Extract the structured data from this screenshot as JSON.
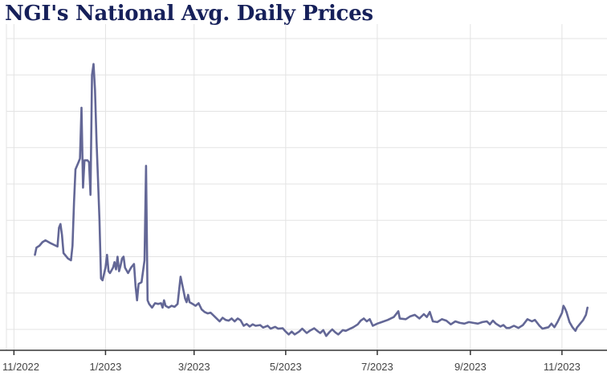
{
  "title": "NGI's National Avg. Daily Prices",
  "colors": {
    "line": "#636796",
    "grid": "#e3e3e3",
    "axis": "#333333",
    "title": "#16205a"
  },
  "chart_data": {
    "type": "line",
    "title": "NGI's National Avg. Daily Prices",
    "xlabel": "",
    "ylabel": "",
    "grid": true,
    "legend": "none",
    "x_tick_labels": [
      "11/2022",
      "1/2023",
      "3/2023",
      "5/2023",
      "7/2023",
      "9/2023",
      "11/2023"
    ],
    "y_tick_labels": [],
    "x_tick_dates": [
      "2022-11-01",
      "2023-01-01",
      "2023-03-01",
      "2023-05-01",
      "2023-07-01",
      "2023-09-01",
      "2023-11-01"
    ],
    "xlim": [
      "2022-10-27",
      "2023-12-01"
    ],
    "ylim": [
      0,
      8
    ],
    "series": [
      {
        "values": [
          [
            "2022-11-15",
            2.05
          ],
          [
            "2022-11-16",
            2.25
          ],
          [
            "2022-11-18",
            2.3
          ],
          [
            "2022-11-20",
            2.4
          ],
          [
            "2022-11-22",
            2.45
          ],
          [
            "2022-11-25",
            2.38
          ],
          [
            "2022-11-28",
            2.32
          ],
          [
            "2022-11-30",
            2.28
          ],
          [
            "2022-12-01",
            2.8
          ],
          [
            "2022-12-02",
            2.9
          ],
          [
            "2022-12-03",
            2.6
          ],
          [
            "2022-12-04",
            2.1
          ],
          [
            "2022-12-07",
            1.95
          ],
          [
            "2022-12-09",
            1.9
          ],
          [
            "2022-12-10",
            2.3
          ],
          [
            "2022-12-11",
            3.5
          ],
          [
            "2022-12-12",
            4.4
          ],
          [
            "2022-12-14",
            4.6
          ],
          [
            "2022-12-15",
            4.7
          ],
          [
            "2022-12-16",
            6.1
          ],
          [
            "2022-12-17",
            3.9
          ],
          [
            "2022-12-18",
            4.65
          ],
          [
            "2022-12-20",
            4.65
          ],
          [
            "2022-12-21",
            4.6
          ],
          [
            "2022-12-22",
            3.7
          ],
          [
            "2022-12-23",
            7.0
          ],
          [
            "2022-12-24",
            7.3
          ],
          [
            "2022-12-25",
            6.6
          ],
          [
            "2022-12-26",
            5.2
          ],
          [
            "2022-12-27",
            4.1
          ],
          [
            "2022-12-28",
            3.0
          ],
          [
            "2022-12-29",
            1.4
          ],
          [
            "2022-12-30",
            1.35
          ],
          [
            "2023-01-01",
            1.7
          ],
          [
            "2023-01-02",
            2.05
          ],
          [
            "2023-01-03",
            1.6
          ],
          [
            "2023-01-04",
            1.55
          ],
          [
            "2023-01-06",
            1.7
          ],
          [
            "2023-01-07",
            1.85
          ],
          [
            "2023-01-08",
            1.65
          ],
          [
            "2023-01-09",
            2.0
          ],
          [
            "2023-01-10",
            1.6
          ],
          [
            "2023-01-11",
            1.75
          ],
          [
            "2023-01-12",
            1.95
          ],
          [
            "2023-01-13",
            2.0
          ],
          [
            "2023-01-14",
            1.7
          ],
          [
            "2023-01-16",
            1.55
          ],
          [
            "2023-01-18",
            1.7
          ],
          [
            "2023-01-20",
            1.8
          ],
          [
            "2023-01-21",
            1.2
          ],
          [
            "2023-01-22",
            0.8
          ],
          [
            "2023-01-23",
            1.25
          ],
          [
            "2023-01-25",
            1.3
          ],
          [
            "2023-01-27",
            1.9
          ],
          [
            "2023-01-28",
            4.5
          ],
          [
            "2023-01-29",
            0.8
          ],
          [
            "2023-01-30",
            0.7
          ],
          [
            "2023-02-01",
            0.6
          ],
          [
            "2023-02-03",
            0.72
          ],
          [
            "2023-02-05",
            0.7
          ],
          [
            "2023-02-07",
            0.72
          ],
          [
            "2023-02-08",
            0.6
          ],
          [
            "2023-02-09",
            0.8
          ],
          [
            "2023-02-10",
            0.65
          ],
          [
            "2023-02-12",
            0.6
          ],
          [
            "2023-02-14",
            0.65
          ],
          [
            "2023-02-16",
            0.62
          ],
          [
            "2023-02-18",
            0.7
          ],
          [
            "2023-02-20",
            1.45
          ],
          [
            "2023-02-22",
            1.05
          ],
          [
            "2023-02-23",
            0.85
          ],
          [
            "2023-02-24",
            0.75
          ],
          [
            "2023-02-25",
            0.95
          ],
          [
            "2023-02-26",
            0.75
          ],
          [
            "2023-02-28",
            0.7
          ],
          [
            "2023-03-02",
            0.65
          ],
          [
            "2023-03-04",
            0.72
          ],
          [
            "2023-03-06",
            0.55
          ],
          [
            "2023-03-08",
            0.48
          ],
          [
            "2023-03-10",
            0.44
          ],
          [
            "2023-03-12",
            0.46
          ],
          [
            "2023-03-14",
            0.38
          ],
          [
            "2023-03-16",
            0.3
          ],
          [
            "2023-03-18",
            0.22
          ],
          [
            "2023-03-20",
            0.32
          ],
          [
            "2023-03-22",
            0.26
          ],
          [
            "2023-03-24",
            0.24
          ],
          [
            "2023-03-26",
            0.3
          ],
          [
            "2023-03-28",
            0.22
          ],
          [
            "2023-03-30",
            0.3
          ],
          [
            "2023-04-01",
            0.25
          ],
          [
            "2023-04-03",
            0.1
          ],
          [
            "2023-04-05",
            0.15
          ],
          [
            "2023-04-07",
            0.08
          ],
          [
            "2023-04-09",
            0.14
          ],
          [
            "2023-04-11",
            0.1
          ],
          [
            "2023-04-14",
            0.12
          ],
          [
            "2023-04-16",
            0.05
          ],
          [
            "2023-04-19",
            0.1
          ],
          [
            "2023-04-21",
            0.02
          ],
          [
            "2023-04-24",
            0.07
          ],
          [
            "2023-04-26",
            0.02
          ],
          [
            "2023-04-29",
            0.03
          ],
          [
            "2023-05-01",
            -0.06
          ],
          [
            "2023-05-03",
            -0.14
          ],
          [
            "2023-05-05",
            -0.06
          ],
          [
            "2023-05-07",
            -0.14
          ],
          [
            "2023-05-10",
            -0.06
          ],
          [
            "2023-05-12",
            0.02
          ],
          [
            "2023-05-15",
            -0.1
          ],
          [
            "2023-05-17",
            -0.04
          ],
          [
            "2023-05-20",
            0.03
          ],
          [
            "2023-05-22",
            -0.04
          ],
          [
            "2023-05-24",
            -0.1
          ],
          [
            "2023-05-26",
            -0.02
          ],
          [
            "2023-05-28",
            -0.18
          ],
          [
            "2023-05-30",
            -0.08
          ],
          [
            "2023-06-01",
            0.0
          ],
          [
            "2023-06-03",
            -0.08
          ],
          [
            "2023-06-05",
            -0.14
          ],
          [
            "2023-06-08",
            -0.02
          ],
          [
            "2023-06-10",
            -0.04
          ],
          [
            "2023-06-13",
            0.02
          ],
          [
            "2023-06-15",
            0.06
          ],
          [
            "2023-06-18",
            0.14
          ],
          [
            "2023-06-20",
            0.24
          ],
          [
            "2023-06-22",
            0.3
          ],
          [
            "2023-06-24",
            0.22
          ],
          [
            "2023-06-26",
            0.28
          ],
          [
            "2023-06-28",
            0.1
          ],
          [
            "2023-07-01",
            0.16
          ],
          [
            "2023-07-04",
            0.2
          ],
          [
            "2023-07-08",
            0.26
          ],
          [
            "2023-07-12",
            0.34
          ],
          [
            "2023-07-15",
            0.5
          ],
          [
            "2023-07-16",
            0.3
          ],
          [
            "2023-07-20",
            0.28
          ],
          [
            "2023-07-23",
            0.36
          ],
          [
            "2023-07-26",
            0.4
          ],
          [
            "2023-07-29",
            0.3
          ],
          [
            "2023-08-01",
            0.42
          ],
          [
            "2023-08-03",
            0.34
          ],
          [
            "2023-08-05",
            0.48
          ],
          [
            "2023-08-07",
            0.22
          ],
          [
            "2023-08-10",
            0.2
          ],
          [
            "2023-08-13",
            0.28
          ],
          [
            "2023-08-16",
            0.24
          ],
          [
            "2023-08-19",
            0.14
          ],
          [
            "2023-08-22",
            0.22
          ],
          [
            "2023-08-25",
            0.18
          ],
          [
            "2023-08-28",
            0.16
          ],
          [
            "2023-08-31",
            0.2
          ],
          [
            "2023-09-03",
            0.18
          ],
          [
            "2023-09-06",
            0.16
          ],
          [
            "2023-09-09",
            0.2
          ],
          [
            "2023-09-12",
            0.22
          ],
          [
            "2023-09-14",
            0.14
          ],
          [
            "2023-09-16",
            0.24
          ],
          [
            "2023-09-18",
            0.16
          ],
          [
            "2023-09-21",
            0.08
          ],
          [
            "2023-09-23",
            0.12
          ],
          [
            "2023-09-25",
            0.04
          ],
          [
            "2023-09-27",
            0.04
          ],
          [
            "2023-09-30",
            0.1
          ],
          [
            "2023-10-03",
            0.04
          ],
          [
            "2023-10-06",
            0.12
          ],
          [
            "2023-10-09",
            0.28
          ],
          [
            "2023-10-12",
            0.22
          ],
          [
            "2023-10-14",
            0.26
          ],
          [
            "2023-10-17",
            0.1
          ],
          [
            "2023-10-19",
            0.02
          ],
          [
            "2023-10-21",
            0.04
          ],
          [
            "2023-10-23",
            0.06
          ],
          [
            "2023-10-25",
            0.16
          ],
          [
            "2023-10-27",
            0.06
          ],
          [
            "2023-10-29",
            0.2
          ],
          [
            "2023-11-01",
            0.45
          ],
          [
            "2023-11-02",
            0.65
          ],
          [
            "2023-11-03",
            0.58
          ],
          [
            "2023-11-04",
            0.48
          ],
          [
            "2023-11-06",
            0.2
          ],
          [
            "2023-11-08",
            0.06
          ],
          [
            "2023-11-10",
            -0.04
          ],
          [
            "2023-11-11",
            0.05
          ],
          [
            "2023-11-13",
            0.15
          ],
          [
            "2023-11-15",
            0.25
          ],
          [
            "2023-11-17",
            0.4
          ],
          [
            "2023-11-18",
            0.6
          ]
        ]
      }
    ]
  }
}
